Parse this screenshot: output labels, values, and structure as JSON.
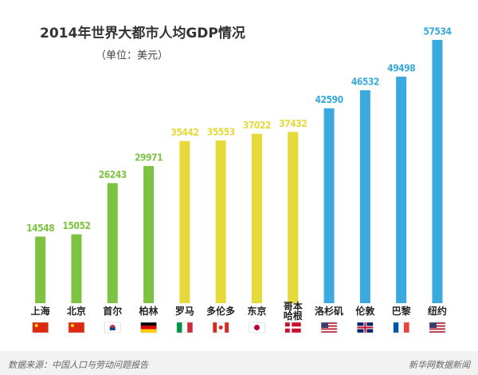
{
  "chart_data": {
    "type": "bar",
    "title": "2014年世界大都市人均GDP情况",
    "subtitle": "（单位：美元）",
    "categories": [
      "上海",
      "北京",
      "首尔",
      "柏林",
      "罗马",
      "多伦多",
      "东京",
      "哥本\n哈根",
      "洛杉矶",
      "伦敦",
      "巴黎",
      "纽约"
    ],
    "values": [
      14548,
      15052,
      26243,
      29971,
      35442,
      35553,
      37022,
      37432,
      42590,
      46532,
      49498,
      57534
    ],
    "colors": [
      "#7ec242",
      "#7ec242",
      "#7ec242",
      "#7ec242",
      "#e6d93b",
      "#e6d93b",
      "#e6d93b",
      "#e6d93b",
      "#3aa9dd",
      "#3aa9dd",
      "#3aa9dd",
      "#3aa9dd"
    ],
    "source": "数据来源：中国人口与劳动问题报告",
    "credit": "新华网数据新闻"
  }
}
